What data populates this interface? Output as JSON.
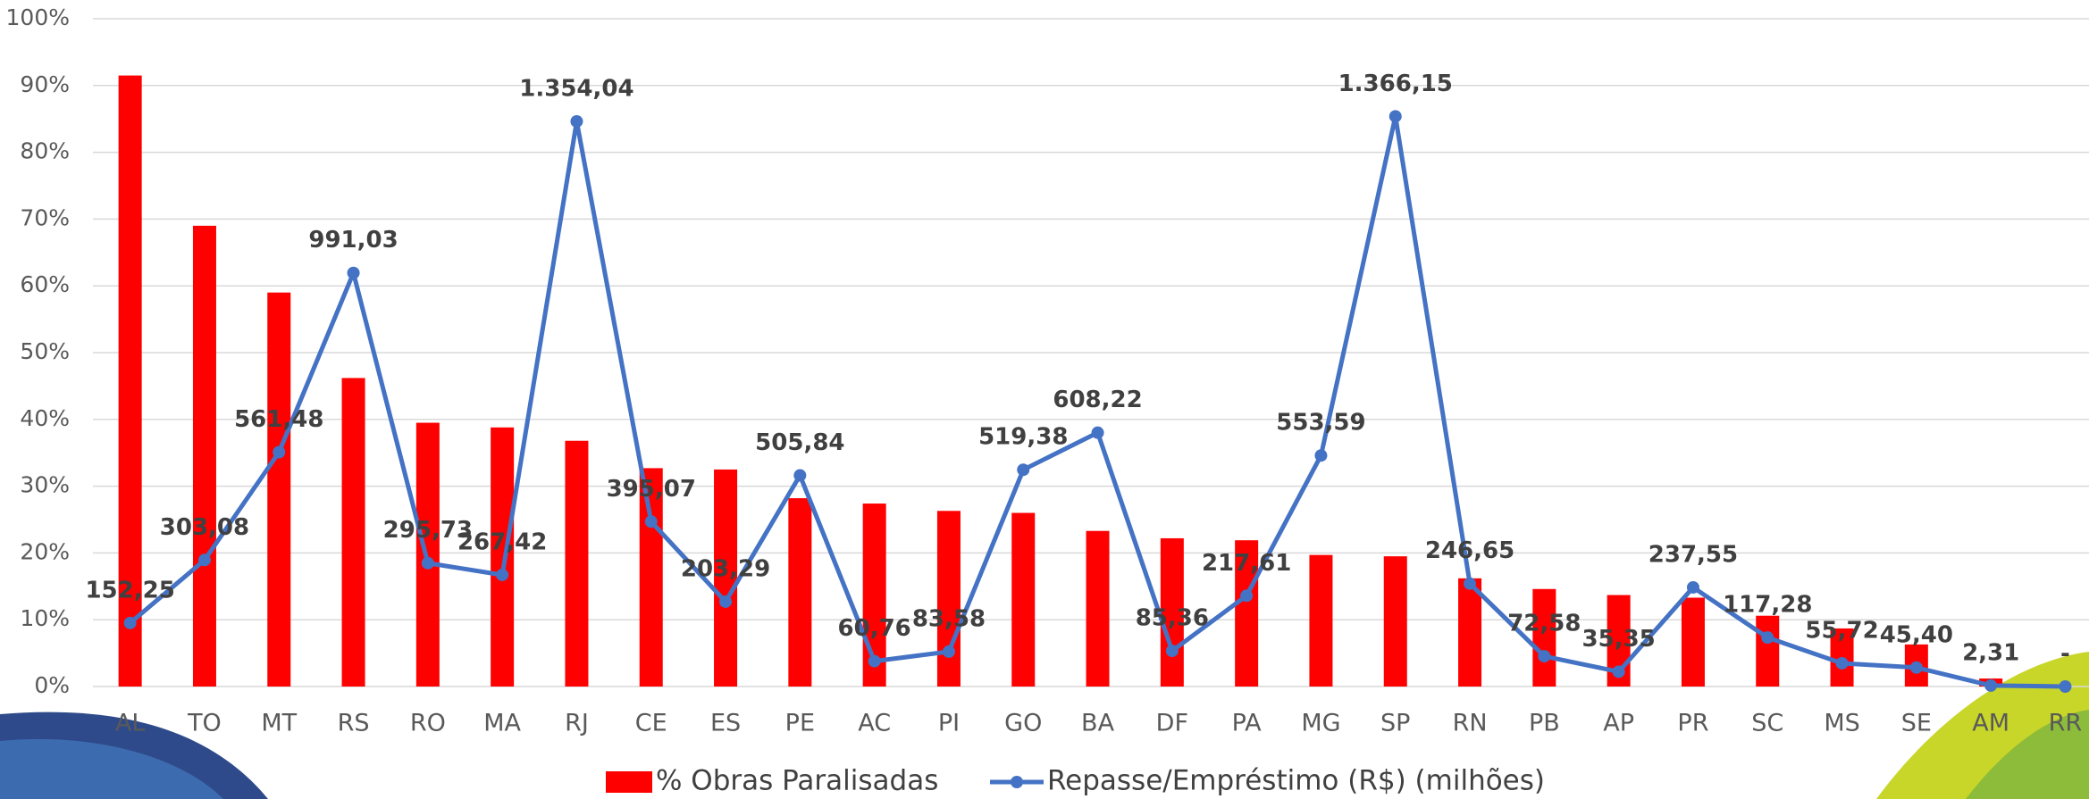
{
  "chart_data": {
    "type": "combo",
    "categories": [
      "AL",
      "TO",
      "MT",
      "RS",
      "RO",
      "MA",
      "RJ",
      "CE",
      "ES",
      "PE",
      "AC",
      "PI",
      "GO",
      "BA",
      "DF",
      "PA",
      "MG",
      "SP",
      "RN",
      "PB",
      "AP",
      "PR",
      "SC",
      "MS",
      "SE",
      "AM",
      "RR"
    ],
    "series": [
      {
        "name": "% Obras Paralisadas",
        "type": "bar",
        "color": "#ff0000",
        "values": [
          91.5,
          69,
          59,
          46.2,
          39.5,
          38.8,
          36.8,
          32.7,
          32.5,
          28.2,
          27.4,
          26.3,
          26,
          23.3,
          22.2,
          21.9,
          19.7,
          19.5,
          16.2,
          14.6,
          13.7,
          13.3,
          10.6,
          8.7,
          6.3,
          1.2,
          0
        ]
      },
      {
        "name": "Repasse/Empréstimo (R$) (milhões)",
        "type": "line",
        "axis": "y2",
        "color": "#4472c4",
        "values": [
          152.25,
          303.08,
          561.48,
          991.03,
          295.73,
          267.42,
          1354.04,
          395.07,
          203.29,
          505.84,
          60.76,
          83.58,
          519.38,
          608.22,
          85.36,
          217.61,
          553.59,
          1366.15,
          246.65,
          72.58,
          35.35,
          237.55,
          117.28,
          55.72,
          45.4,
          2.31,
          0
        ],
        "value_labels": [
          "152,25",
          "303,08",
          "561,48",
          "991,03",
          "295,73",
          "267,42",
          "1.354,04",
          "395,07",
          "203,29",
          "505,84",
          "60,76",
          "83,58",
          "519,38",
          "608,22",
          "85,36",
          "217,61",
          "553,59",
          "1.366,15",
          "246,65",
          "72,58",
          "35,35",
          "237,55",
          "117,28",
          "55,72",
          "45,40",
          "2,31",
          "-"
        ]
      }
    ],
    "ylim": [
      0,
      100
    ],
    "yticks": [
      {
        "value": 0,
        "label": "0%"
      },
      {
        "value": 10,
        "label": "10%"
      },
      {
        "value": 20,
        "label": "20%"
      },
      {
        "value": 30,
        "label": "30%"
      },
      {
        "value": 40,
        "label": "40%"
      },
      {
        "value": 50,
        "label": "50%"
      },
      {
        "value": 60,
        "label": "60%"
      },
      {
        "value": 70,
        "label": "70%"
      },
      {
        "value": 80,
        "label": "80%"
      },
      {
        "value": 90,
        "label": "90%"
      },
      {
        "value": 100,
        "label": "100%"
      }
    ],
    "y2lim": [
      0,
      1600
    ],
    "grid": true
  }
}
